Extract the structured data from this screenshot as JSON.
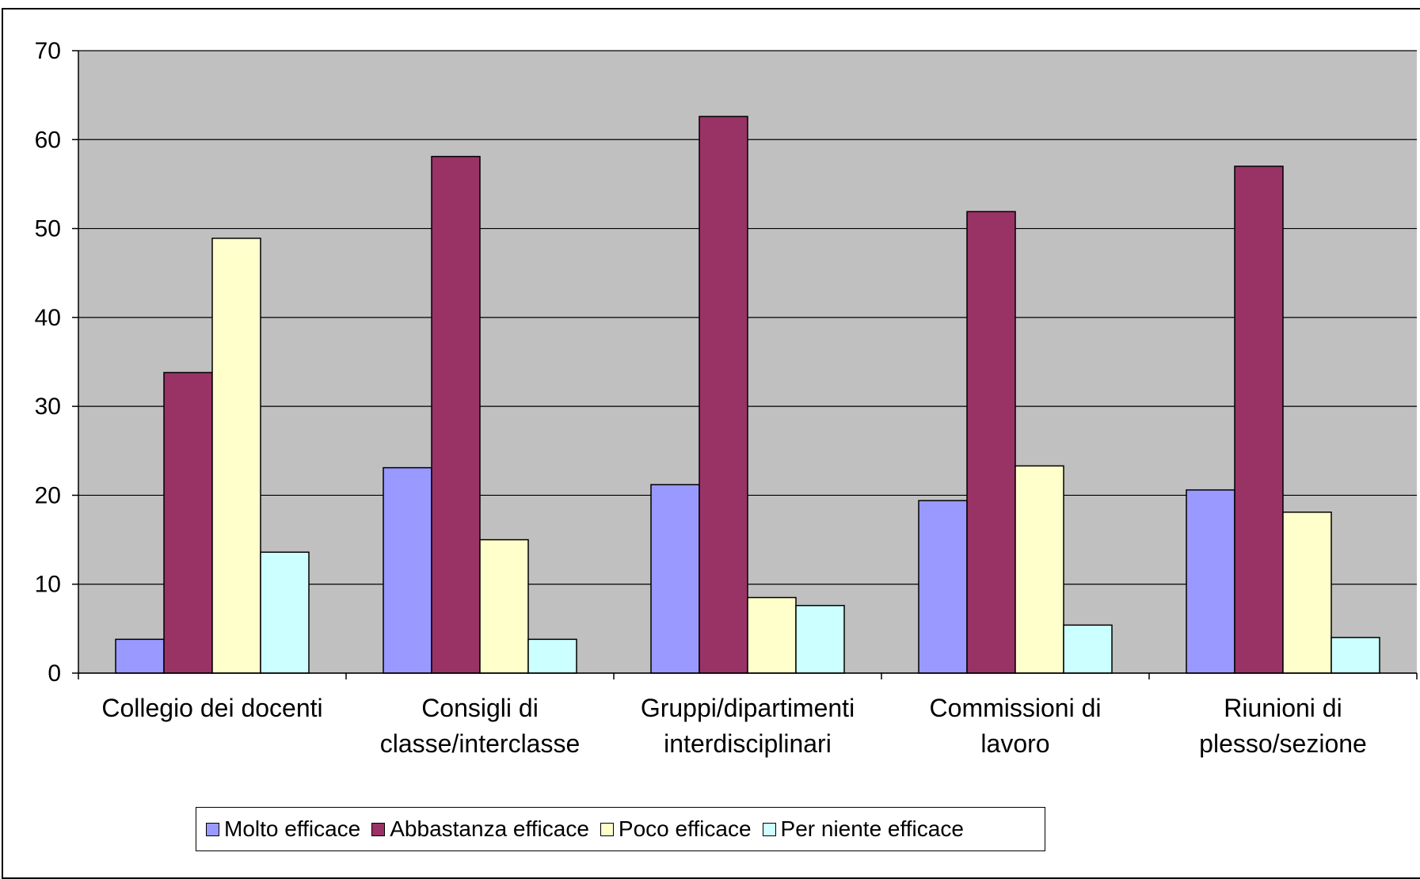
{
  "chart_data": {
    "type": "bar",
    "categories": [
      [
        "Collegio dei docenti"
      ],
      [
        "Consigli di",
        "classe/interclasse"
      ],
      [
        "Gruppi/dipartimenti",
        "interdisciplinari"
      ],
      [
        "Commissioni di",
        "lavoro"
      ],
      [
        "Riunioni di",
        "plesso/sezione"
      ]
    ],
    "series": [
      {
        "name": "Molto efficace",
        "color": "#9999ff",
        "values": [
          3.8,
          23.1,
          21.2,
          19.4,
          20.6
        ]
      },
      {
        "name": "Abbastanza efficace",
        "color": "#993366",
        "values": [
          33.8,
          58.1,
          62.6,
          51.9,
          57.0
        ]
      },
      {
        "name": "Poco efficace",
        "color": "#ffffcc",
        "values": [
          48.9,
          15.0,
          8.5,
          23.3,
          18.1
        ]
      },
      {
        "name": "Per niente efficace",
        "color": "#ccffff",
        "values": [
          13.6,
          3.8,
          7.6,
          5.4,
          4.0
        ]
      }
    ],
    "ylim": [
      0,
      70
    ],
    "yticks": [
      0,
      10,
      20,
      30,
      40,
      50,
      60,
      70
    ],
    "grid": true,
    "plot_background": "#c0c0c0",
    "legend_position": "bottom"
  }
}
